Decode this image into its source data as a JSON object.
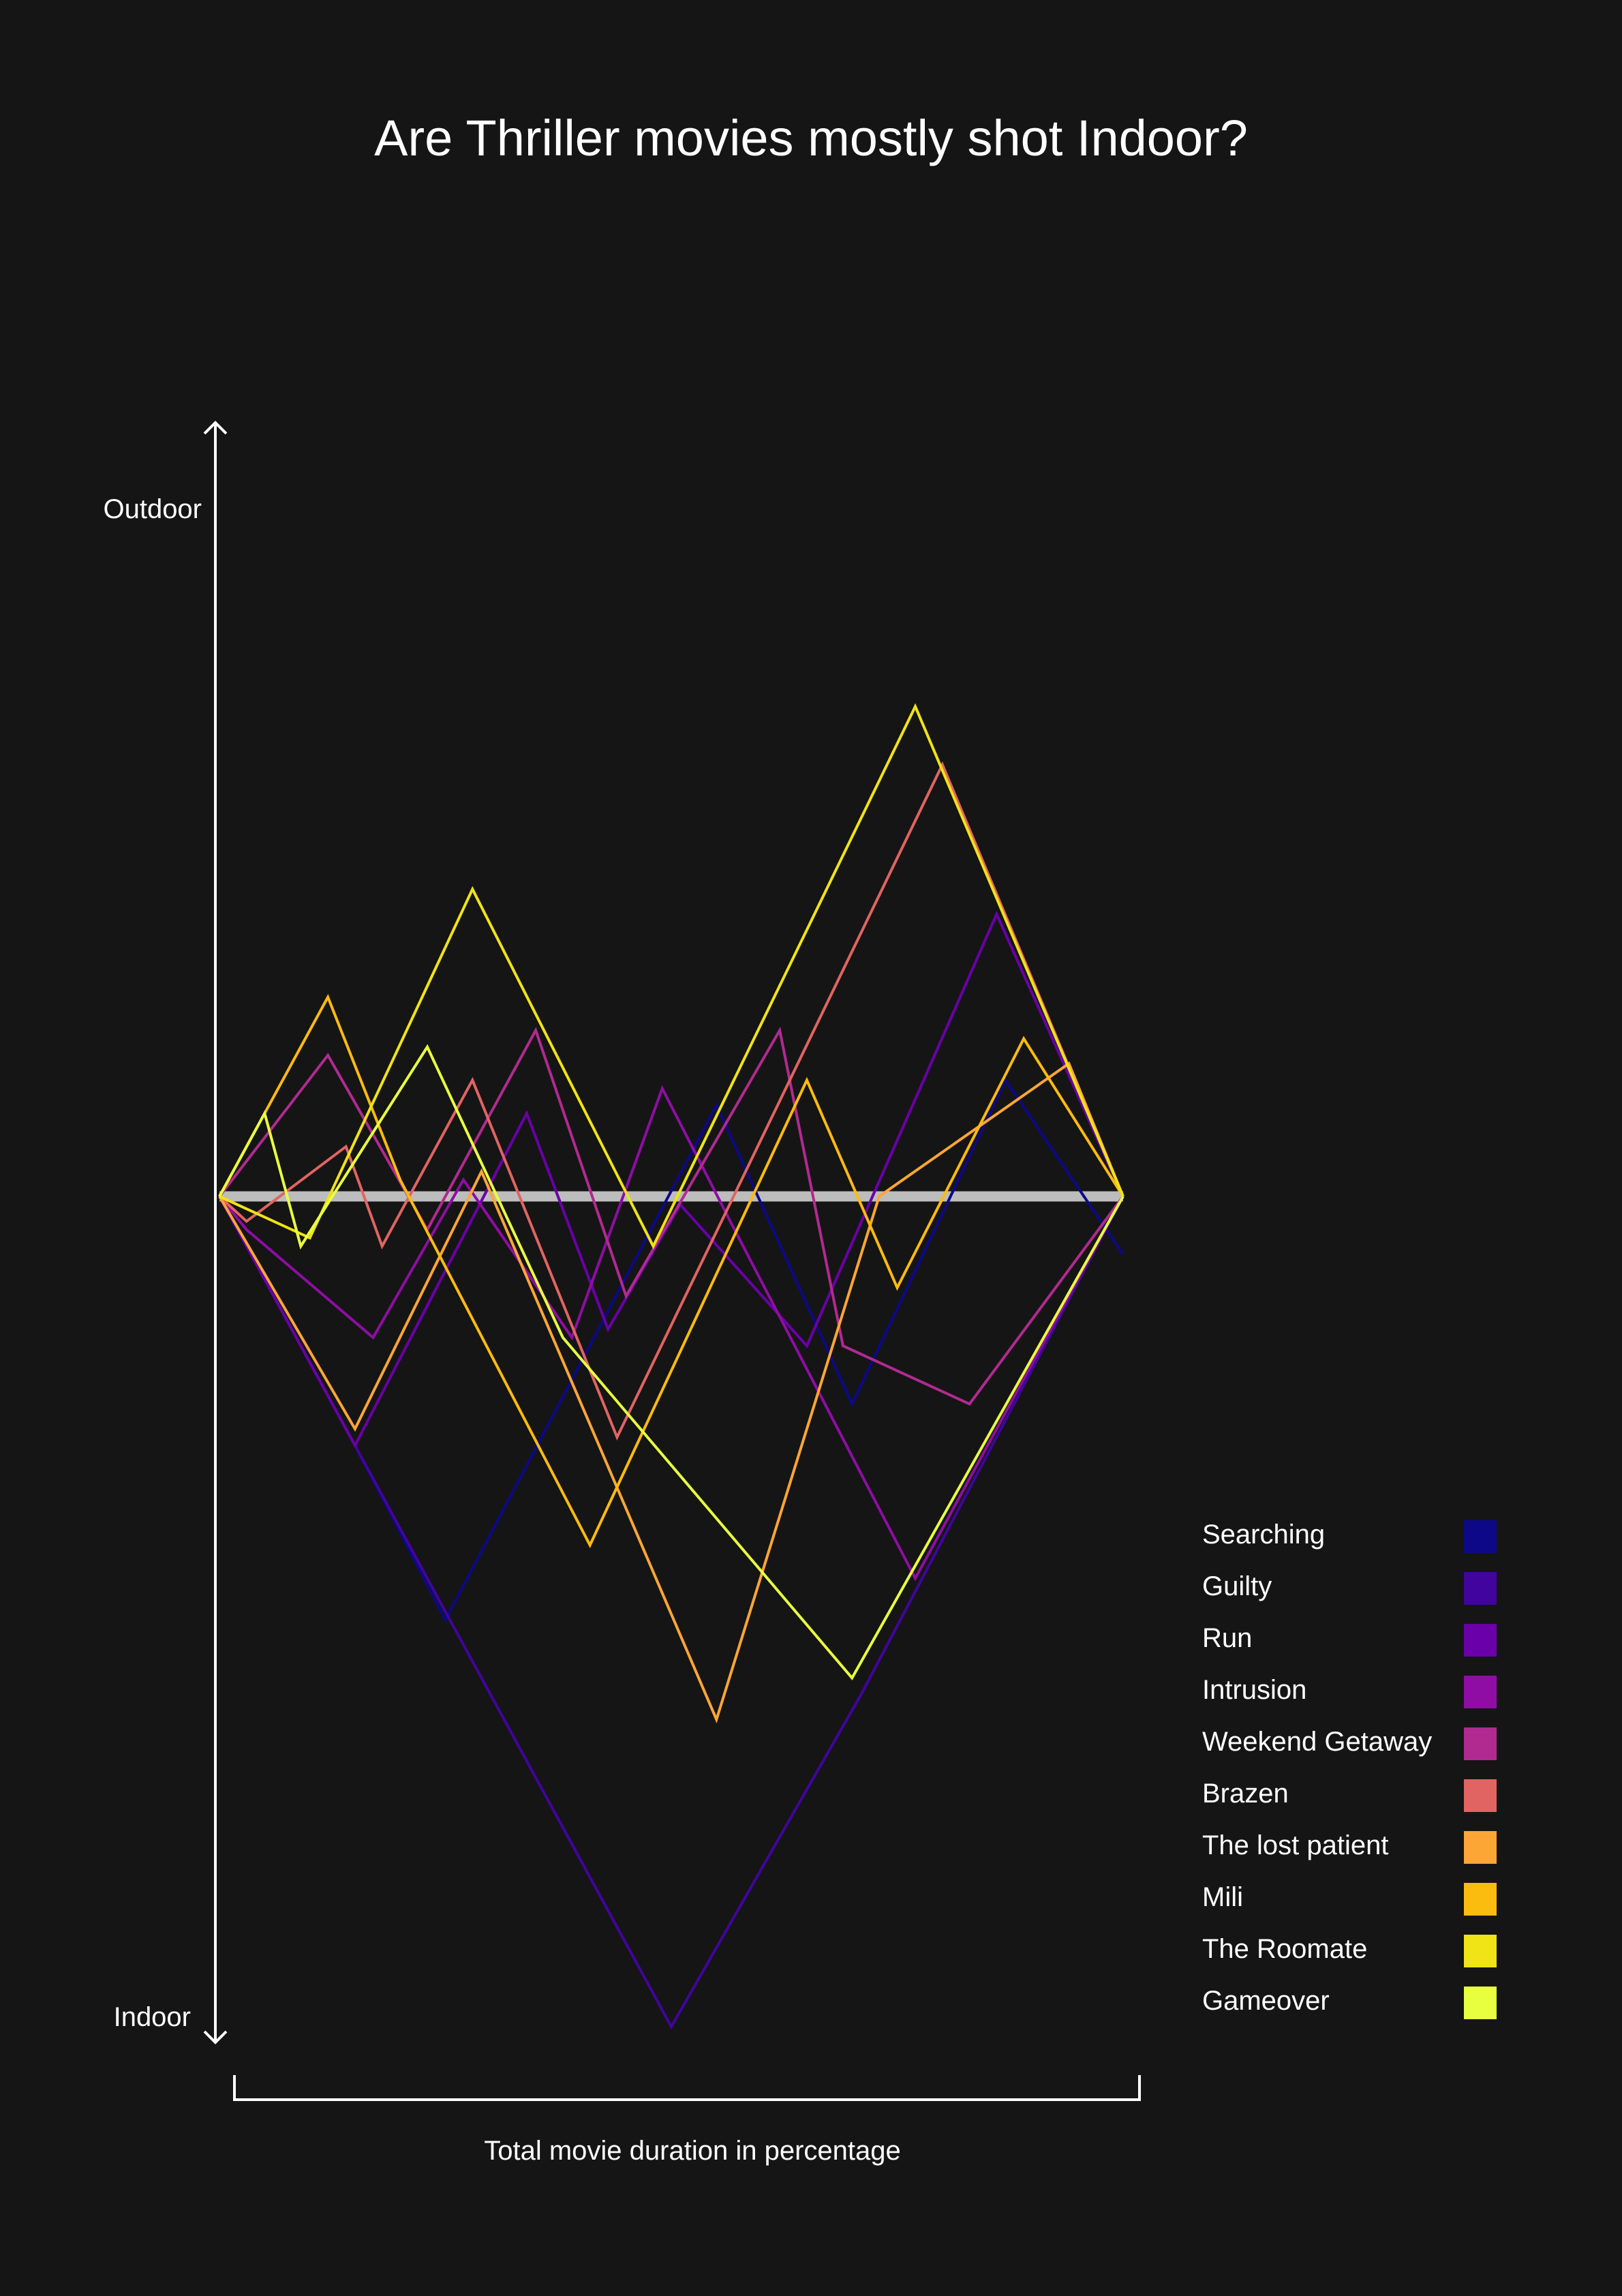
{
  "chart_data": {
    "type": "line",
    "title": "Are Thriller movies mostly shot Indoor?",
    "xlabel": "Total movie duration in percentage",
    "y_top_label": "Outdoor",
    "y_bottom_label": "Indoor",
    "xlim": [
      0,
      100
    ],
    "ylim": [
      -100,
      100
    ],
    "baseline": {
      "y": 0,
      "color": "#bdbdbd"
    },
    "series": [
      {
        "name": "Searching",
        "color": "#0d0887",
        "x": [
          0,
          15,
          25,
          55,
          70,
          87,
          100
        ],
        "y": [
          0,
          -30,
          -51,
          11,
          -25,
          14,
          -7
        ]
      },
      {
        "name": "Guilty",
        "color": "#41049d",
        "x": [
          0,
          15,
          50,
          71,
          100
        ],
        "y": [
          0,
          -30,
          -100,
          -60,
          0
        ]
      },
      {
        "name": "Run",
        "color": "#6a00a8",
        "x": [
          0,
          15,
          34,
          43,
          51,
          65,
          86,
          100
        ],
        "y": [
          0,
          -30,
          10,
          -16,
          -1,
          -18,
          34,
          0
        ]
      },
      {
        "name": "Intrusion",
        "color": "#8f0da4",
        "x": [
          0,
          3,
          17,
          27,
          39,
          49,
          57,
          77,
          100
        ],
        "y": [
          0,
          -4,
          -17,
          2,
          -17,
          13,
          -4,
          -46,
          0
        ]
      },
      {
        "name": "Weekend Getaway",
        "color": "#b12a90",
        "x": [
          0,
          12,
          23,
          35,
          45,
          62,
          69,
          83,
          100
        ],
        "y": [
          0,
          17,
          -4,
          20,
          -12,
          20,
          -18,
          -25,
          0
        ]
      },
      {
        "name": "Brazen",
        "color": "#e16462",
        "x": [
          0,
          3,
          14,
          18,
          28,
          44,
          80,
          100
        ],
        "y": [
          0,
          -3,
          6,
          -6,
          14,
          -29,
          52,
          0
        ]
      },
      {
        "name": "The lost patient",
        "color": "#fca636",
        "x": [
          0,
          15,
          29,
          55,
          73,
          94,
          100
        ],
        "y": [
          0,
          -28,
          3,
          -63,
          0,
          16,
          0
        ]
      },
      {
        "name": "Mili",
        "color": "#fcbb0f",
        "x": [
          0,
          12,
          20,
          41,
          65,
          75,
          89,
          100
        ],
        "y": [
          0,
          24,
          2,
          -42,
          14,
          -11,
          19,
          0
        ]
      },
      {
        "name": "The Roomate",
        "color": "#f0e316",
        "x": [
          0,
          10,
          28,
          48,
          77,
          100
        ],
        "y": [
          0,
          -5,
          37,
          -6,
          59,
          0
        ]
      },
      {
        "name": "Gameover",
        "color": "#e8ff40",
        "x": [
          0,
          5,
          9,
          23,
          38,
          70,
          100
        ],
        "y": [
          0,
          10,
          -6,
          18,
          -17,
          -58,
          0
        ]
      }
    ]
  }
}
